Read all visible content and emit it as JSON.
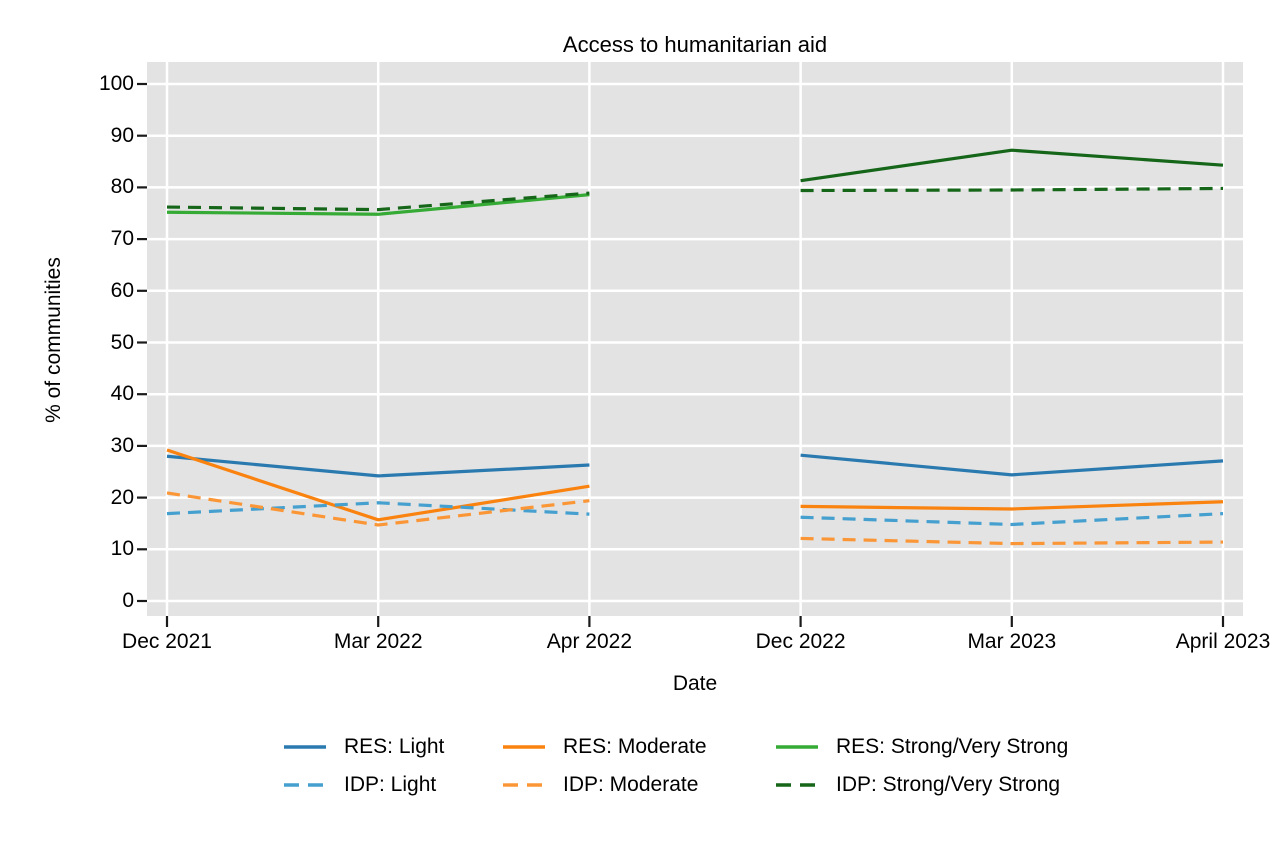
{
  "chart_data": {
    "type": "line",
    "title": "Access to humanitarian aid",
    "xlabel": "Date",
    "ylabel": "% of communities",
    "categories": [
      "Dec 2021",
      "Mar 2022",
      "Apr 2022",
      "Dec 2022",
      "Mar 2023",
      "April 2023"
    ],
    "ylim": [
      0,
      100
    ],
    "yticks": [
      0,
      10,
      20,
      30,
      40,
      50,
      60,
      70,
      80,
      90,
      100
    ],
    "grid": true,
    "plot_bg": "#e3e3e3",
    "grid_color": "#ffffff",
    "tick_color": "#1a1a1a",
    "legend_position": "bottom",
    "segments": [
      [
        0,
        2
      ],
      [
        3,
        5
      ]
    ],
    "series": [
      {
        "name": "RES: Light",
        "style": "solid",
        "color": "#2a7ab0",
        "values": [
          28.0,
          24.2,
          26.3,
          28.2,
          24.4,
          27.1
        ]
      },
      {
        "name": "RES: Moderate",
        "style": "solid",
        "color": "#fa820f",
        "values": [
          29.2,
          15.7,
          22.2,
          18.3,
          17.8,
          19.2
        ]
      },
      {
        "name": "RES: Strong/Very Strong",
        "style": "solid",
        "color": "#35ab35",
        "color_right_segment": "#156619",
        "values": [
          75.2,
          74.8,
          78.6,
          81.3,
          87.2,
          84.3
        ]
      },
      {
        "name": "IDP: Light",
        "style": "dashed",
        "color": "#45a0cf",
        "values": [
          16.9,
          19.0,
          16.8,
          16.2,
          14.8,
          16.9
        ]
      },
      {
        "name": "IDP: Moderate",
        "style": "dashed",
        "color": "#fb9637",
        "values": [
          20.9,
          14.7,
          19.4,
          12.1,
          11.1,
          11.4
        ]
      },
      {
        "name": "IDP: Strong/Very Strong",
        "style": "dashed",
        "color": "#156619",
        "values": [
          76.2,
          75.7,
          78.9,
          79.4,
          79.5,
          79.8
        ]
      }
    ]
  }
}
